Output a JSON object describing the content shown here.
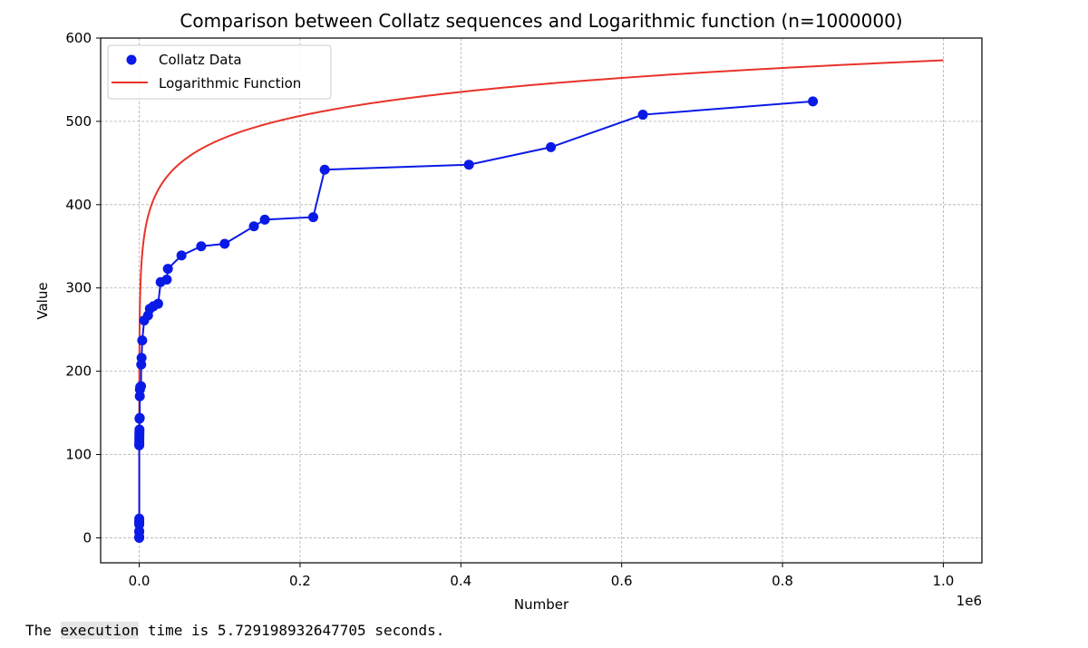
{
  "chart_data": {
    "type": "line",
    "title": "Comparison between Collatz sequences and Logarithmic function (n=1000000)",
    "xlabel": "Number",
    "ylabel": "Value",
    "x_offset_label": "1e6",
    "xlim": [
      -48000,
      1048000
    ],
    "ylim": [
      -30,
      600
    ],
    "x_ticks": [
      0,
      200000,
      400000,
      600000,
      800000,
      1000000
    ],
    "x_tick_labels": [
      "0.0",
      "0.2",
      "0.4",
      "0.6",
      "0.8",
      "1.0"
    ],
    "y_ticks": [
      0,
      100,
      200,
      300,
      400,
      500,
      600
    ],
    "y_tick_labels": [
      "0",
      "100",
      "200",
      "300",
      "400",
      "500",
      "600"
    ],
    "grid": true,
    "legend_position": "top-left",
    "series": [
      {
        "name": "Collatz Data",
        "kind": "scatter-line",
        "color": "#0a1ae6",
        "x": [
          1,
          2,
          3,
          6,
          7,
          9,
          18,
          25,
          27,
          54,
          73,
          97,
          129,
          171,
          231,
          313,
          327,
          649,
          703,
          871,
          1161,
          2223,
          2463,
          2919,
          3711,
          6171,
          10971,
          13255,
          17647,
          23529,
          26623,
          34239,
          35655,
          52527,
          77031,
          106239,
          142587,
          156159,
          216367,
          230631,
          410011,
          511935,
          626331,
          837799
        ],
        "y": [
          0,
          1,
          7,
          8,
          16,
          19,
          20,
          23,
          111,
          112,
          115,
          118,
          121,
          124,
          127,
          130,
          143,
          144,
          170,
          178,
          181,
          182,
          208,
          216,
          237,
          261,
          267,
          275,
          278,
          281,
          307,
          310,
          323,
          339,
          350,
          353,
          374,
          382,
          385,
          442,
          448,
          469,
          508,
          524
        ]
      },
      {
        "name": "Logarithmic Function",
        "kind": "line",
        "color": "#e8332a",
        "function": "41.5 * ln(x)",
        "x_range": [
          1,
          1000000
        ]
      }
    ]
  },
  "output": {
    "prefix": "The ",
    "highlight": "execution",
    "suffix": " time is 5.729198932647705 seconds."
  }
}
